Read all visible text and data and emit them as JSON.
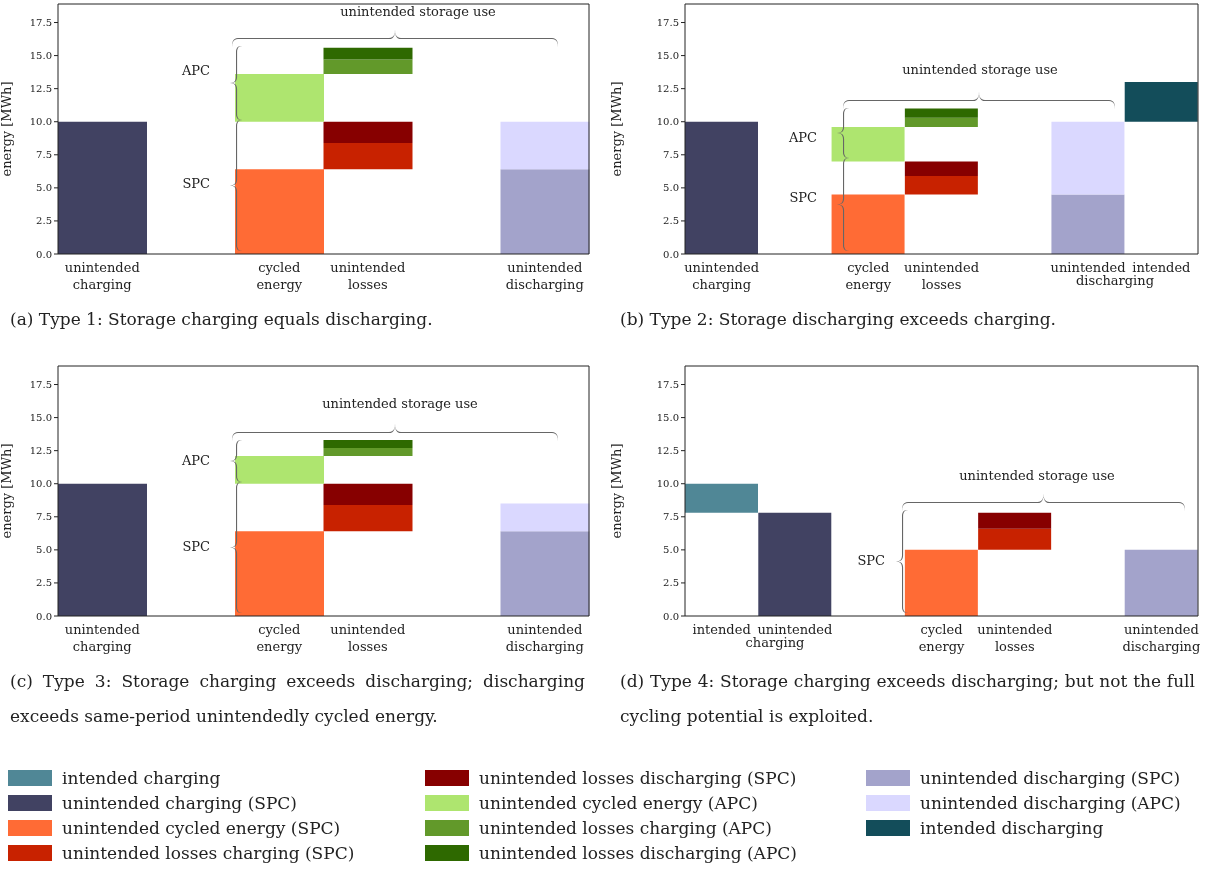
{
  "chart_data": [
    {
      "type": "bar",
      "title": "(a) Type 1: Storage charging equals discharging.",
      "ylabel": "energy [MWh]",
      "categories": [
        "unintended charging",
        null,
        "cycled energy",
        "unintended losses",
        null,
        "unintended discharging"
      ],
      "ylim": [
        0,
        18.9
      ],
      "yticks": [
        {
          "value": 0,
          "label": "0.0"
        },
        {
          "value": 2.5,
          "label": "2.5"
        },
        {
          "value": 5,
          "label": "5.0"
        },
        {
          "value": 7.5,
          "label": "7.5"
        },
        {
          "value": 10,
          "label": "10.0"
        },
        {
          "value": 12.5,
          "label": "12.5"
        },
        {
          "value": 15,
          "label": "15.0"
        },
        {
          "value": 17.5,
          "label": "17.5"
        }
      ],
      "legend": "bottom",
      "annotations": [
        "unintended storage use",
        "APC",
        "SPC"
      ],
      "series": [
        {
          "name": "intended charging",
          "color": "#508796",
          "values": [
            null,
            null,
            null,
            null,
            null,
            null
          ]
        },
        {
          "name": "unintended charging (SPC)",
          "color": "#414262",
          "values": [
            10,
            null,
            null,
            null,
            null,
            null
          ],
          "base": [
            0,
            null,
            null,
            null,
            null,
            null
          ]
        },
        {
          "name": "unintended cycled energy (SPC)",
          "color": "#ff6b35",
          "values": [
            null,
            null,
            6.4,
            null,
            null,
            null
          ],
          "base": [
            null,
            null,
            0,
            null,
            null,
            null
          ]
        },
        {
          "name": "unintended losses charging (SPC)",
          "color": "#c82200",
          "values": [
            null,
            null,
            null,
            2.0,
            null,
            null
          ],
          "base": [
            null,
            null,
            null,
            6.4,
            null,
            null
          ]
        },
        {
          "name": "unintended losses discharging (SPC)",
          "color": "#870000",
          "values": [
            null,
            null,
            null,
            1.6,
            null,
            null
          ],
          "base": [
            null,
            null,
            null,
            8.4,
            null,
            null
          ]
        },
        {
          "name": "unintended cycled energy (APC)",
          "color": "#aee56f",
          "values": [
            null,
            null,
            3.6,
            null,
            null,
            null
          ],
          "base": [
            null,
            null,
            10,
            null,
            null,
            null
          ]
        },
        {
          "name": "unintended losses charging (APC)",
          "color": "#62992a",
          "values": [
            null,
            null,
            null,
            1.1,
            null,
            null
          ],
          "base": [
            null,
            null,
            null,
            13.6,
            null,
            null
          ]
        },
        {
          "name": "unintended losses discharging (APC)",
          "color": "#2e6900",
          "values": [
            null,
            null,
            null,
            0.9,
            null,
            null
          ],
          "base": [
            null,
            null,
            null,
            14.7,
            null,
            null
          ]
        },
        {
          "name": "unintended discharging (SPC)",
          "color": "#a3a3cb",
          "values": [
            null,
            null,
            null,
            null,
            null,
            6.4
          ],
          "base": [
            null,
            null,
            null,
            null,
            null,
            0
          ]
        },
        {
          "name": "unintended discharging (APC)",
          "color": "#dad8ff",
          "values": [
            null,
            null,
            null,
            null,
            null,
            3.6
          ],
          "base": [
            null,
            null,
            null,
            null,
            null,
            6.4
          ]
        },
        {
          "name": "intended discharging",
          "color": "#134d5a",
          "values": [
            null,
            null,
            null,
            null,
            null,
            null
          ]
        }
      ]
    },
    {
      "type": "bar",
      "title": "(b) Type 2: Storage discharging exceeds charging.",
      "ylabel": "energy [MWh]",
      "categories": [
        "unintended charging",
        null,
        "cycled energy",
        "unintended losses",
        null,
        "unintended",
        "intended"
      ],
      "ylim": [
        0,
        18.9
      ],
      "yticks": [
        {
          "value": 0,
          "label": "0.0"
        },
        {
          "value": 2.5,
          "label": "2.5"
        },
        {
          "value": 5,
          "label": "5.0"
        },
        {
          "value": 7.5,
          "label": "7.5"
        },
        {
          "value": 10,
          "label": "10.0"
        },
        {
          "value": 12.5,
          "label": "12.5"
        },
        {
          "value": 15,
          "label": "15.0"
        },
        {
          "value": 17.5,
          "label": "17.5"
        }
      ],
      "annotations": [
        "unintended storage use",
        "APC",
        "SPC",
        "discharging"
      ],
      "series": [
        {
          "color": "#414262",
          "values": [
            10,
            null,
            null,
            null,
            null,
            null,
            null
          ],
          "base": [
            0,
            null,
            null,
            null,
            null,
            null,
            null
          ]
        },
        {
          "color": "#ff6b35",
          "values": [
            null,
            null,
            4.5,
            null,
            null,
            null,
            null
          ],
          "base": [
            null,
            null,
            0,
            null,
            null,
            null,
            null
          ]
        },
        {
          "color": "#c82200",
          "values": [
            null,
            null,
            null,
            1.4,
            null,
            null,
            null
          ],
          "base": [
            null,
            null,
            null,
            4.5,
            null,
            null,
            null
          ]
        },
        {
          "color": "#870000",
          "values": [
            null,
            null,
            null,
            1.1,
            null,
            null,
            null
          ],
          "base": [
            null,
            null,
            null,
            5.9,
            null,
            null,
            null
          ]
        },
        {
          "color": "#aee56f",
          "values": [
            null,
            null,
            2.6,
            null,
            null,
            null,
            null
          ],
          "base": [
            null,
            null,
            7.0,
            null,
            null,
            null,
            null
          ]
        },
        {
          "color": "#62992a",
          "values": [
            null,
            null,
            null,
            0.7,
            null,
            null,
            null
          ],
          "base": [
            null,
            null,
            null,
            9.6,
            null,
            null,
            null
          ]
        },
        {
          "color": "#2e6900",
          "values": [
            null,
            null,
            null,
            0.7,
            null,
            null,
            null
          ],
          "base": [
            null,
            null,
            null,
            10.3,
            null,
            null,
            null
          ]
        },
        {
          "color": "#a3a3cb",
          "values": [
            null,
            null,
            null,
            null,
            null,
            4.5,
            null
          ],
          "base": [
            null,
            null,
            null,
            null,
            null,
            0,
            null
          ]
        },
        {
          "color": "#dad8ff",
          "values": [
            null,
            null,
            null,
            null,
            null,
            5.5,
            null
          ],
          "base": [
            null,
            null,
            null,
            null,
            null,
            4.5,
            null
          ]
        },
        {
          "color": "#134d5a",
          "values": [
            null,
            null,
            null,
            null,
            null,
            null,
            3.0
          ],
          "base": [
            null,
            null,
            null,
            null,
            null,
            null,
            10
          ]
        }
      ]
    },
    {
      "type": "bar",
      "title": "(c) Type 3: Storage charging exceeds discharging; discharging exceeds same-period unintendedly cycled energy.",
      "ylabel": "energy [MWh]",
      "categories": [
        "unintended charging",
        null,
        "cycled energy",
        "unintended losses",
        null,
        "unintended discharging"
      ],
      "ylim": [
        0,
        18.9
      ],
      "yticks": [
        {
          "value": 0,
          "label": "0.0"
        },
        {
          "value": 2.5,
          "label": "2.5"
        },
        {
          "value": 5,
          "label": "5.0"
        },
        {
          "value": 7.5,
          "label": "7.5"
        },
        {
          "value": 10,
          "label": "10.0"
        },
        {
          "value": 12.5,
          "label": "12.5"
        },
        {
          "value": 15,
          "label": "15.0"
        },
        {
          "value": 17.5,
          "label": "17.5"
        }
      ],
      "annotations": [
        "unintended storage use",
        "APC",
        "SPC"
      ],
      "series": [
        {
          "color": "#414262",
          "values": [
            10,
            null,
            null,
            null,
            null,
            null
          ],
          "base": [
            0,
            null,
            null,
            null,
            null,
            null
          ]
        },
        {
          "color": "#ff6b35",
          "values": [
            null,
            null,
            6.4,
            null,
            null,
            null
          ],
          "base": [
            null,
            null,
            0,
            null,
            null,
            null
          ]
        },
        {
          "color": "#c82200",
          "values": [
            null,
            null,
            null,
            2.0,
            null,
            null
          ],
          "base": [
            null,
            null,
            null,
            6.4,
            null,
            null
          ]
        },
        {
          "color": "#870000",
          "values": [
            null,
            null,
            null,
            1.6,
            null,
            null
          ],
          "base": [
            null,
            null,
            null,
            8.4,
            null,
            null
          ]
        },
        {
          "color": "#aee56f",
          "values": [
            null,
            null,
            2.1,
            null,
            null,
            null
          ],
          "base": [
            null,
            null,
            10,
            null,
            null,
            null
          ]
        },
        {
          "color": "#62992a",
          "values": [
            null,
            null,
            null,
            0.6,
            null,
            null
          ],
          "base": [
            null,
            null,
            null,
            12.1,
            null,
            null
          ]
        },
        {
          "color": "#2e6900",
          "values": [
            null,
            null,
            null,
            0.6,
            null,
            null
          ],
          "base": [
            null,
            null,
            null,
            12.7,
            null,
            null
          ]
        },
        {
          "color": "#a3a3cb",
          "values": [
            null,
            null,
            null,
            null,
            null,
            6.4
          ],
          "base": [
            null,
            null,
            null,
            null,
            null,
            0
          ]
        },
        {
          "color": "#dad8ff",
          "values": [
            null,
            null,
            null,
            null,
            null,
            2.1
          ],
          "base": [
            null,
            null,
            null,
            null,
            null,
            6.4
          ]
        }
      ]
    },
    {
      "type": "bar",
      "title": "(d) Type 4: Storage charging exceeds discharging; but not the full cycling potential is exploited.",
      "ylabel": "energy [MWh]",
      "categories": [
        "intended",
        "unintended",
        null,
        "cycled energy",
        "unintended losses",
        null,
        "unintended discharging"
      ],
      "ylim": [
        0,
        18.9
      ],
      "yticks": [
        {
          "value": 0,
          "label": "0.0"
        },
        {
          "value": 2.5,
          "label": "2.5"
        },
        {
          "value": 5,
          "label": "5.0"
        },
        {
          "value": 7.5,
          "label": "7.5"
        },
        {
          "value": 10,
          "label": "10.0"
        },
        {
          "value": 12.5,
          "label": "12.5"
        },
        {
          "value": 15,
          "label": "15.0"
        },
        {
          "value": 17.5,
          "label": "17.5"
        }
      ],
      "annotations": [
        "unintended storage use",
        "SPC",
        "charging"
      ],
      "series": [
        {
          "color": "#508796",
          "values": [
            2.2,
            null,
            null,
            null,
            null,
            null,
            null
          ],
          "base": [
            7.8,
            null,
            null,
            null,
            null,
            null,
            null
          ]
        },
        {
          "color": "#414262",
          "values": [
            null,
            7.8,
            null,
            null,
            null,
            null,
            null
          ],
          "base": [
            null,
            0,
            null,
            null,
            null,
            null,
            null
          ]
        },
        {
          "color": "#ff6b35",
          "values": [
            null,
            null,
            null,
            5.0,
            null,
            null,
            null
          ],
          "base": [
            null,
            null,
            null,
            0,
            null,
            null,
            null
          ]
        },
        {
          "color": "#c82200",
          "values": [
            null,
            null,
            null,
            null,
            1.6,
            null,
            null
          ],
          "base": [
            null,
            null,
            null,
            null,
            5.0,
            null,
            null
          ]
        },
        {
          "color": "#870000",
          "values": [
            null,
            null,
            null,
            null,
            1.2,
            null,
            null
          ],
          "base": [
            null,
            null,
            null,
            null,
            6.6,
            null,
            null
          ]
        },
        {
          "color": "#a3a3cb",
          "values": [
            null,
            null,
            null,
            null,
            null,
            null,
            5.0
          ],
          "base": [
            null,
            null,
            null,
            null,
            null,
            null,
            0
          ]
        }
      ]
    }
  ]
}
